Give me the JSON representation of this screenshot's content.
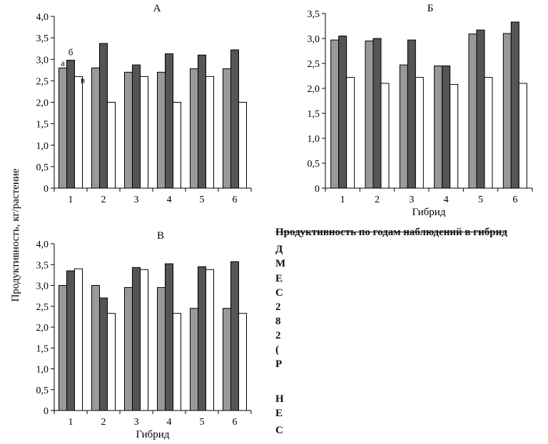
{
  "shared": {
    "ylabel": "Продуктивность, кг/растение",
    "xlabel": "Гибрид",
    "bar_colors": [
      "#999999",
      "#555555",
      "#ffffff"
    ]
  },
  "chart_data": [
    {
      "type": "bar",
      "title": "А",
      "categories": [
        "1",
        "2",
        "3",
        "4",
        "5",
        "6"
      ],
      "series": [
        {
          "name": "а",
          "values": [
            2.8,
            2.8,
            2.7,
            2.7,
            2.78,
            2.78
          ]
        },
        {
          "name": "б",
          "values": [
            2.98,
            3.37,
            2.87,
            3.13,
            3.1,
            3.22
          ]
        },
        {
          "name": "в",
          "values": [
            2.6,
            2.0,
            2.6,
            2.0,
            2.6,
            2.0
          ]
        }
      ],
      "yticks": [
        "0",
        "0,5",
        "1,0",
        "1,5",
        "2,0",
        "2,5",
        "3,0",
        "3,5",
        "4,0"
      ],
      "ylim": [
        0,
        4.0
      ],
      "xlabel": "",
      "annotations": [
        "а",
        "б",
        "в"
      ]
    },
    {
      "type": "bar",
      "title": "Б",
      "categories": [
        "1",
        "2",
        "3",
        "4",
        "5",
        "6"
      ],
      "series": [
        {
          "name": "а",
          "values": [
            2.97,
            2.95,
            2.47,
            2.45,
            3.09,
            3.1
          ]
        },
        {
          "name": "б",
          "values": [
            3.05,
            3.0,
            2.97,
            2.45,
            3.17,
            3.33
          ]
        },
        {
          "name": "в",
          "values": [
            2.22,
            2.1,
            2.22,
            2.08,
            2.22,
            2.1
          ]
        }
      ],
      "yticks": [
        "0",
        "0,5",
        "1,0",
        "1,5",
        "2,0",
        "2,5",
        "3,0",
        "3,5"
      ],
      "ylim": [
        0,
        3.5
      ],
      "xlabel": "Гибрид"
    },
    {
      "type": "bar",
      "title": "В",
      "categories": [
        "1",
        "2",
        "3",
        "4",
        "5",
        "6"
      ],
      "series": [
        {
          "name": "а",
          "values": [
            3.0,
            3.0,
            2.95,
            2.95,
            2.45,
            2.45
          ]
        },
        {
          "name": "б",
          "values": [
            3.35,
            2.7,
            3.43,
            3.52,
            3.45,
            3.57
          ]
        },
        {
          "name": "в",
          "values": [
            3.4,
            2.33,
            3.38,
            2.33,
            3.38,
            2.33
          ]
        }
      ],
      "yticks": [
        "0",
        "0,5",
        "1,0",
        "1,5",
        "2,0",
        "2,5",
        "3,0",
        "3,5",
        "4,0"
      ],
      "ylim": [
        0,
        4.0
      ],
      "xlabel": "Гибрид"
    }
  ],
  "cutoff_text": {
    "lines": [
      "Продуктивность по годам наблюдений в гибрид",
      "Д",
      "М",
      "Е",
      "С",
      "2",
      "8",
      "2",
      "(",
      "Р",
      "",
      "Н",
      "Е",
      "С"
    ]
  }
}
